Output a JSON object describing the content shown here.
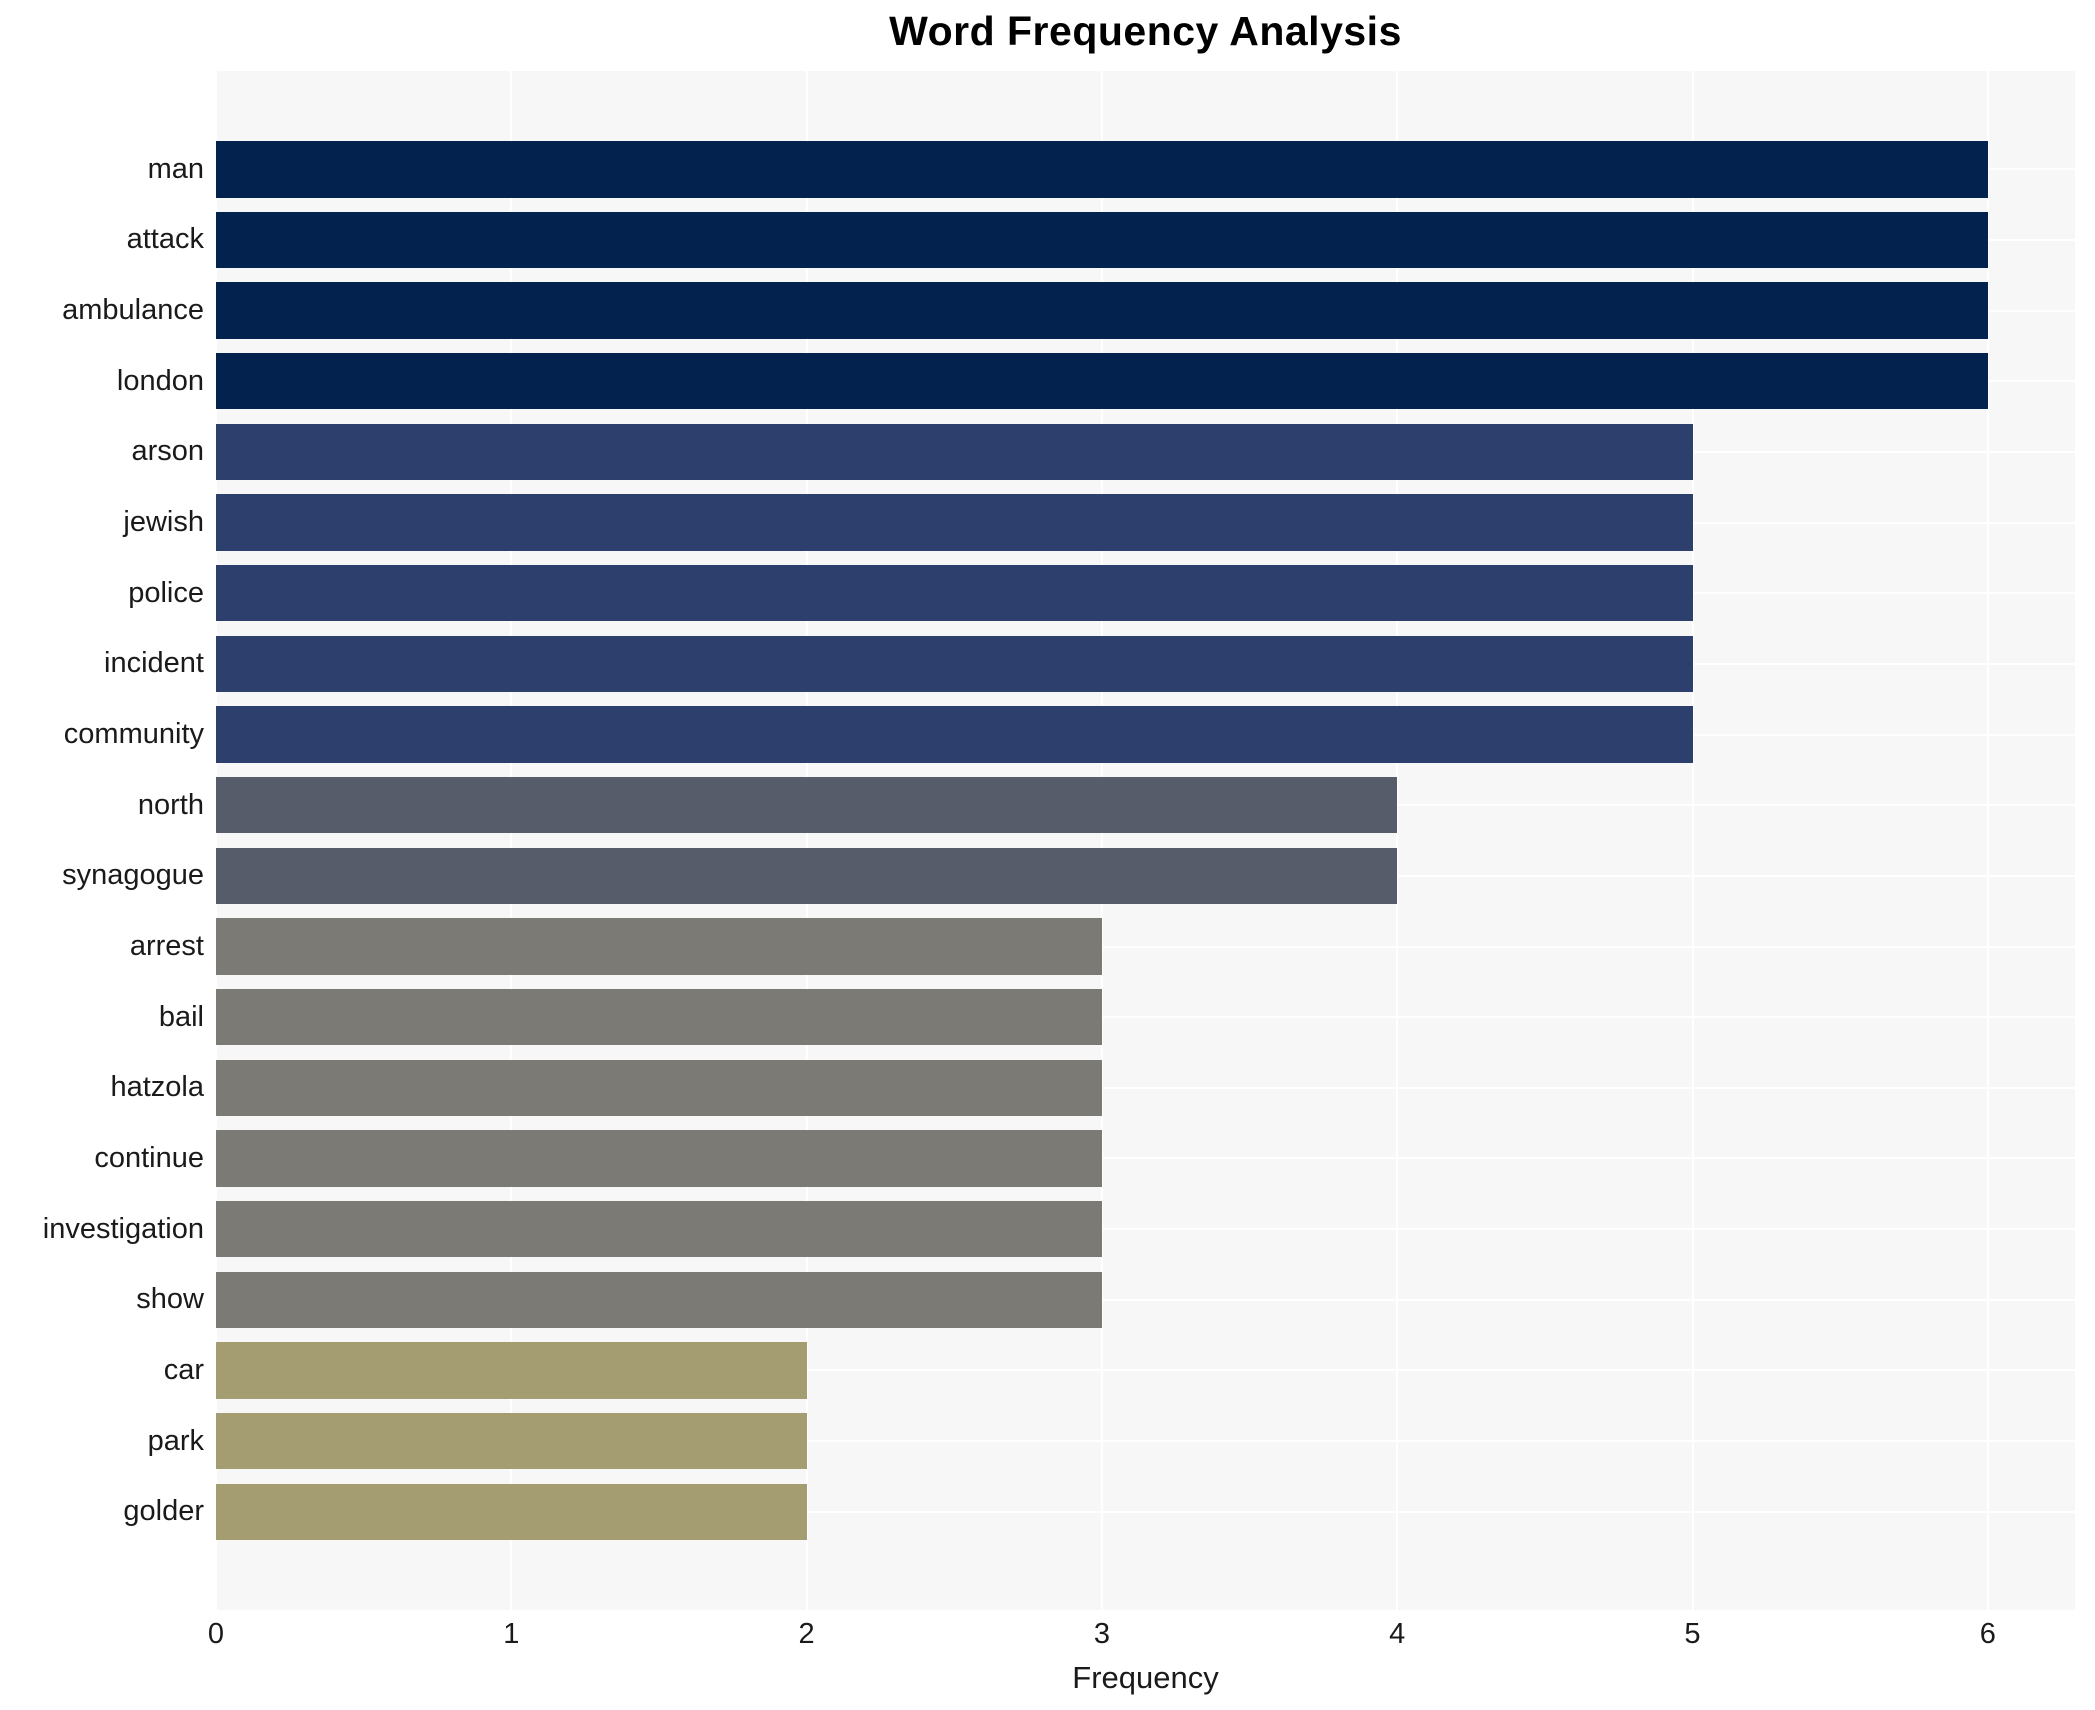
{
  "title": "Word Frequency Analysis",
  "chart_data": {
    "type": "bar",
    "orientation": "horizontal",
    "title": "Word Frequency Analysis",
    "xlabel": "Frequency",
    "ylabel": "",
    "categories": [
      "man",
      "attack",
      "ambulance",
      "london",
      "arson",
      "jewish",
      "police",
      "incident",
      "community",
      "north",
      "synagogue",
      "arrest",
      "bail",
      "hatzola",
      "continue",
      "investigation",
      "show",
      "car",
      "park",
      "golder"
    ],
    "values": [
      6,
      6,
      6,
      6,
      5,
      5,
      5,
      5,
      5,
      4,
      4,
      3,
      3,
      3,
      3,
      3,
      3,
      2,
      2,
      2
    ],
    "x_ticks": [
      0,
      1,
      2,
      3,
      4,
      5,
      6
    ],
    "xlim": [
      0,
      6.3
    ],
    "grid": true,
    "legend": false,
    "colors_by_value": {
      "6": "#03224d",
      "5": "#2d3f6c",
      "4": "#565c6a",
      "3": "#7b7a74",
      "2": "#a49d72"
    },
    "plot_bg": "#f7f7f7",
    "gridline_color": "#ffffff",
    "text_color": "#1a1a1a"
  }
}
